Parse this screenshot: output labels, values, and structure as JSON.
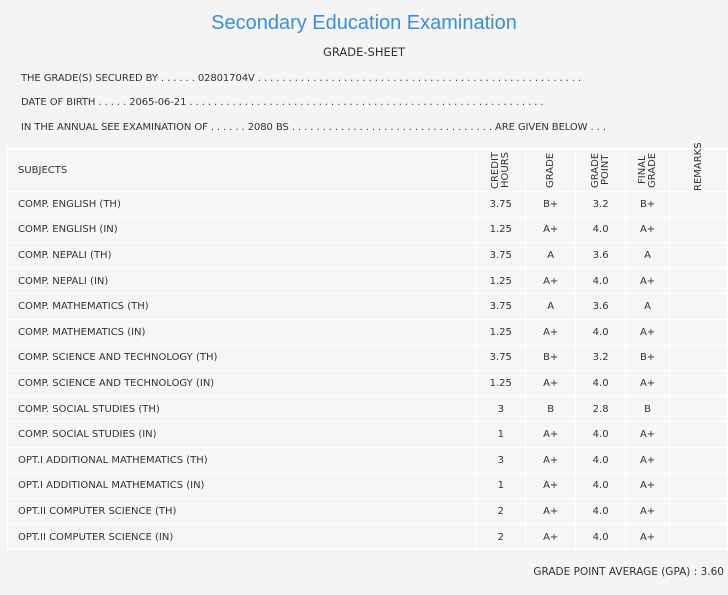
{
  "header": {
    "title": "Secondary Education Examination",
    "subtitle": "GRADE-SHEET",
    "lines": [
      "THE GRADE(S) SECURED BY . . . . . . 02801704V . . . . . . . . . . . . . . . . . . . . . . . . . . . . . . . . . . . . . . . . . . . . . . . . . . . . .",
      "DATE OF BIRTH . . . . . 2065-06-21 . . . . . . . . . . . . . . . . . . . . . . . . . . . . . . . . . . . . . . . . . . . . . . . . . . . . . . . . . .",
      "IN THE ANNUAL SEE EXAMINATION OF . . . . . . 2080 BS . . . . . . . . . . . . . . . . . . . . . . . . . . . . . . . . . ARE GIVEN BELOW . . ."
    ]
  },
  "table": {
    "columns": [
      "SUBJECTS",
      "CREDIT HOURS",
      "GRADE",
      "GRADE POINT",
      "FINAL GRADE",
      "REMARKS"
    ],
    "rows": [
      [
        "COMP. ENGLISH (TH)",
        "3.75",
        "B+",
        "3.2",
        "B+"
      ],
      [
        "COMP. ENGLISH (IN)",
        "1.25",
        "A+",
        "4.0",
        "A+"
      ],
      [
        "COMP. NEPALI (TH)",
        "3.75",
        "A",
        "3.6",
        "A"
      ],
      [
        "COMP. NEPALI (IN)",
        "1.25",
        "A+",
        "4.0",
        "A+"
      ],
      [
        "COMP. MATHEMATICS (TH)",
        "3.75",
        "A",
        "3.6",
        "A"
      ],
      [
        "COMP. MATHEMATICS (IN)",
        "1.25",
        "A+",
        "4.0",
        "A+"
      ],
      [
        "COMP. SCIENCE AND TECHNOLOGY (TH)",
        "3.75",
        "B+",
        "3.2",
        "B+"
      ],
      [
        "COMP. SCIENCE AND TECHNOLOGY (IN)",
        "1.25",
        "A+",
        "4.0",
        "A+"
      ],
      [
        "COMP. SOCIAL STUDIES (TH)",
        "3",
        "B",
        "2.8",
        "B"
      ],
      [
        "COMP. SOCIAL STUDIES (IN)",
        "1",
        "A+",
        "4.0",
        "A+"
      ],
      [
        "OPT.I ADDITIONAL MATHEMATICS (TH)",
        "3",
        "A+",
        "4.0",
        "A+"
      ],
      [
        "OPT.I ADDITIONAL MATHEMATICS (IN)",
        "1",
        "A+",
        "4.0",
        "A+"
      ],
      [
        "OPT.II COMPUTER SCIENCE (TH)",
        "2",
        "A+",
        "4.0",
        "A+"
      ],
      [
        "OPT.II COMPUTER SCIENCE (IN)",
        "2",
        "A+",
        "4.0",
        "A+"
      ]
    ]
  },
  "footer": {
    "gpa_label": "GRADE POINT AVERAGE (GPA) :",
    "gpa": "3.60"
  }
}
